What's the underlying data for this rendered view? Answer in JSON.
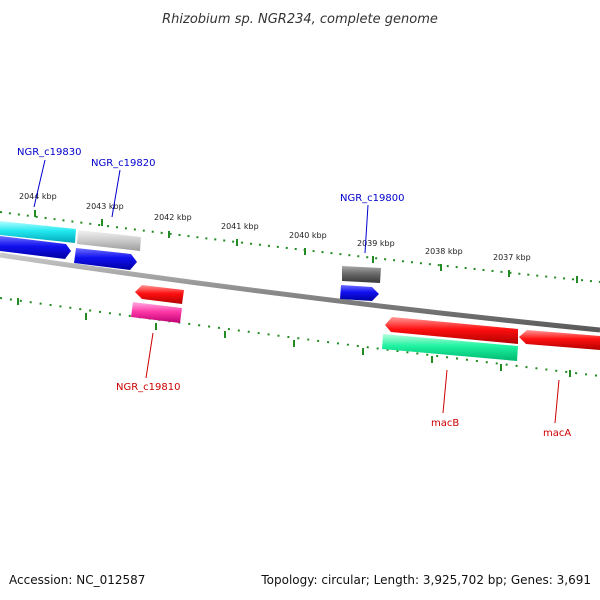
{
  "title": "Rhizobium sp. NGR234, complete genome",
  "footer": {
    "accession": "Accession: NC_012587",
    "summary": "Topology: circular; Length: 3,925,702 bp; Genes: 3,691"
  },
  "ruler": [
    "2044 kbp",
    "2043 kbp",
    "2042 kbp",
    "2041 kbp",
    "2040 kbp",
    "2039 kbp",
    "2038 kbp",
    "2037 kbp"
  ],
  "gene_labels": [
    {
      "text": "NGR_c19830",
      "strand": "forward"
    },
    {
      "text": "NGR_c19820",
      "strand": "forward"
    },
    {
      "text": "NGR_c19800",
      "strand": "forward"
    },
    {
      "text": "NGR_c19810",
      "strand": "reverse"
    },
    {
      "text": "macB",
      "strand": "reverse"
    },
    {
      "text": "macA",
      "strand": "reverse"
    }
  ],
  "colors": {
    "forward_label": "#0000cc",
    "reverse_label": "#cc0000",
    "tick": "#228b22",
    "backbone": "#8c8c8c"
  }
}
